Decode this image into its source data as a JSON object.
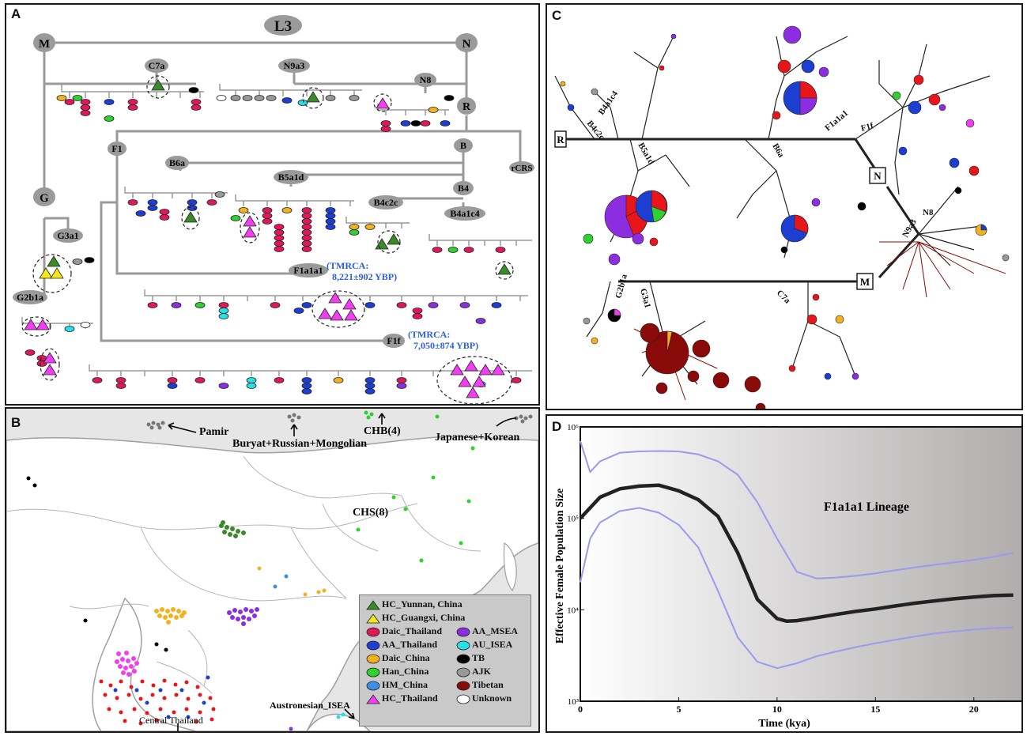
{
  "panel_a": {
    "label": "A",
    "root": "L3",
    "nodes": [
      "M",
      "N",
      "C7a",
      "N9a3",
      "N8",
      "R",
      "F1",
      "B",
      "rCRS",
      "B6a",
      "B5a1d",
      "B4",
      "B4c2c",
      "B4a1c4",
      "G",
      "G3a1",
      "G2b1a",
      "F1a1a1",
      "F1f"
    ],
    "tmrca": [
      {
        "line1": "(TMRCA:",
        "line2": "8,221±902 YBP)"
      },
      {
        "line1": "(TMRCA:",
        "line2": "7,050±874 YBP)"
      }
    ]
  },
  "panel_b": {
    "label": "B",
    "places": {
      "pamir": "Pamir",
      "buryat": "Buryat+Russian+Mongolian",
      "chb": "CHB(4)",
      "japanese": "Japanese+Korean",
      "chs": "CHS(8)",
      "central": "Central Thailand",
      "austronesian": "Austronesian_ISEA"
    },
    "legend_left": [
      {
        "label": "HC_Yunnan, China",
        "shape": "triangle",
        "color": "#3a8a2a"
      },
      {
        "label": "HC_Guangxi, China",
        "shape": "triangle",
        "color": "#f5e81a"
      },
      {
        "label": "Daic_Thailand",
        "shape": "circle",
        "color": "#e0185a"
      },
      {
        "label": "AA_Thailand",
        "shape": "circle",
        "color": "#1d3fd1"
      },
      {
        "label": "Daic_China",
        "shape": "circle",
        "color": "#f2b21e"
      },
      {
        "label": "Han_China",
        "shape": "circle",
        "color": "#2ed12e"
      },
      {
        "label": "HM_China",
        "shape": "circle",
        "color": "#3a8fe6"
      },
      {
        "label": "HC_Thailand",
        "shape": "triangle",
        "color": "#f23df2"
      }
    ],
    "legend_right": [
      {
        "label": "AA_MSEA",
        "shape": "circle",
        "color": "#8c2ee0"
      },
      {
        "label": "AU_ISEA",
        "shape": "circle",
        "color": "#26e0e8"
      },
      {
        "label": "TB",
        "shape": "circle",
        "color": "#000000"
      },
      {
        "label": "AJK",
        "shape": "circle",
        "color": "#999999"
      },
      {
        "label": "Tibetan",
        "shape": "circle",
        "color": "#8a0a0a"
      },
      {
        "label": "Unknown",
        "shape": "circle",
        "color": "#ffffff"
      }
    ]
  },
  "panel_c": {
    "label": "C",
    "boxes": [
      "R",
      "N",
      "M"
    ],
    "branches": [
      "B4c2c",
      "B4a1c4",
      "B5a1d",
      "B6a",
      "F1a1a1",
      "F1f",
      "N8",
      "N9a3",
      "C7a",
      "G2b1a",
      "G3a1"
    ]
  },
  "panel_d": {
    "label": "D",
    "title": "F1a1a1 Lineage",
    "xlabel": "Time (kya)",
    "ylabel": "Effective Female Population Size"
  },
  "chart_data": {
    "type": "line",
    "title": "F1a1a1 Lineage",
    "xlabel": "Time (kya)",
    "ylabel": "Effective Female Population Size",
    "xlim": [
      0,
      22.5
    ],
    "ylim": [
      1000,
      1000000
    ],
    "yscale": "log",
    "xticks": [
      0,
      5,
      10,
      15,
      20
    ],
    "ytick_labels": [
      "10³",
      "10⁴",
      "10⁵",
      "10⁶"
    ],
    "series": [
      {
        "role": "median",
        "color": "#222222",
        "x": [
          0,
          1,
          2,
          3,
          4,
          5,
          6,
          7,
          8,
          9,
          10,
          10.5,
          11,
          12,
          13,
          14,
          15,
          16,
          17,
          18,
          19,
          20,
          21,
          22
        ],
        "y": [
          100000,
          170000,
          210000,
          225000,
          230000,
          200000,
          160000,
          105000,
          42000,
          13000,
          8000,
          7500,
          7600,
          8200,
          8900,
          9600,
          10200,
          11000,
          11800,
          12500,
          13200,
          13800,
          14300,
          14500
        ]
      },
      {
        "role": "upper",
        "color": "#9a9aee",
        "x": [
          0,
          0.5,
          1,
          2,
          3,
          4,
          5,
          6,
          7,
          8,
          9,
          10,
          11,
          12,
          13,
          14,
          15,
          16,
          17,
          18,
          19,
          20,
          21,
          22
        ],
        "y": [
          700000,
          320000,
          420000,
          520000,
          540000,
          545000,
          540000,
          500000,
          420000,
          300000,
          150000,
          60000,
          26000,
          22000,
          22500,
          23500,
          25000,
          27000,
          29000,
          31000,
          33000,
          35000,
          38000,
          42000
        ]
      },
      {
        "role": "lower",
        "color": "#9a9aee",
        "x": [
          0,
          0.5,
          1,
          2,
          3,
          4,
          5,
          6,
          7,
          8,
          9,
          10,
          11,
          12,
          13,
          14,
          15,
          16,
          17,
          18,
          19,
          20,
          21,
          22
        ],
        "y": [
          20000,
          60000,
          90000,
          120000,
          130000,
          115000,
          85000,
          48000,
          16000,
          5000,
          2700,
          2300,
          2600,
          3100,
          3500,
          3900,
          4300,
          4700,
          5100,
          5500,
          5800,
          6100,
          6300,
          6400
        ]
      }
    ]
  }
}
